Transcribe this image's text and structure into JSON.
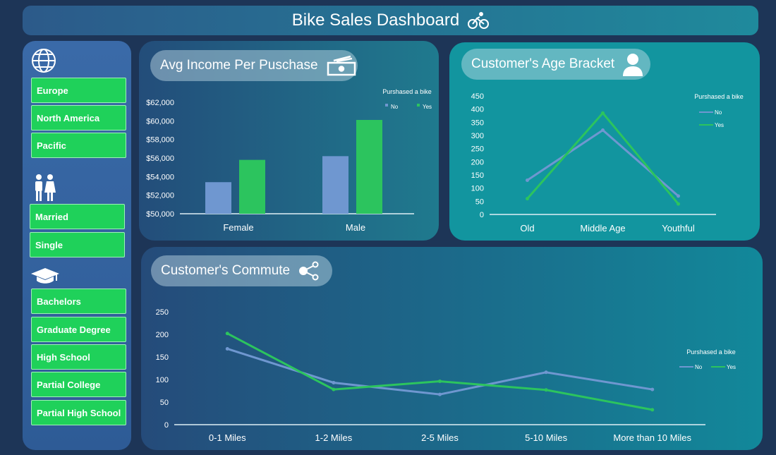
{
  "header": {
    "title": "Bike Sales Dashboard",
    "icon": "bicycle-icon"
  },
  "sidebar": {
    "regions": {
      "icon": "globe-icon",
      "items": [
        "Europe",
        "North America",
        "Pacific"
      ]
    },
    "marital": {
      "icon": "couple-icon",
      "items": [
        "Married",
        "Single"
      ]
    },
    "education": {
      "icon": "graduation-cap-icon",
      "items": [
        "Bachelors",
        "Graduate Degree",
        "High School",
        "Partial College",
        "Partial High School"
      ]
    },
    "button_color": "#1fd15a"
  },
  "colors": {
    "no": "#6f97d0",
    "yes": "#2cc45e"
  },
  "chart_data": [
    {
      "type": "bar",
      "title": "Avg Income Per Puschase",
      "icon": "money-icon",
      "legend_title": "Purshased a bike",
      "legend_placement": "top-right",
      "categories": [
        "Female",
        "Male"
      ],
      "series": [
        {
          "name": "No",
          "values": [
            53400,
            56200
          ]
        },
        {
          "name": "Yes",
          "values": [
            55800,
            60100
          ]
        }
      ],
      "ylim": [
        50000,
        62000
      ],
      "yticks": [
        "$50,000",
        "$52,000",
        "$54,000",
        "$56,000",
        "$58,000",
        "$60,000",
        "$62,000"
      ],
      "grid": false
    },
    {
      "type": "line",
      "title": "Customer's Age Bracket",
      "icon": "person-icon",
      "legend_title": "Purshased a bike",
      "legend_placement": "top-right",
      "categories": [
        "Old",
        "Middle Age",
        "Youthful"
      ],
      "series": [
        {
          "name": "No",
          "values": [
            130,
            320,
            70
          ]
        },
        {
          "name": "Yes",
          "values": [
            60,
            385,
            40
          ]
        }
      ],
      "ylim": [
        0,
        450
      ],
      "yticks": [
        "0",
        "50",
        "100",
        "150",
        "200",
        "250",
        "300",
        "350",
        "400",
        "450"
      ],
      "grid": false
    },
    {
      "type": "line",
      "title": "Customer's Commute",
      "icon": "share-icon",
      "legend_title": "Purshased a bike",
      "legend_placement": "right",
      "categories": [
        "0-1 Miles",
        "1-2 Miles",
        "2-5 Miles",
        "5-10 Miles",
        "More than 10 Miles"
      ],
      "series": [
        {
          "name": "No",
          "values": [
            168,
            93,
            67,
            116,
            78
          ]
        },
        {
          "name": "Yes",
          "values": [
            202,
            78,
            96,
            77,
            33
          ]
        }
      ],
      "ylim": [
        0,
        250
      ],
      "yticks": [
        "0",
        "50",
        "100",
        "150",
        "200",
        "250"
      ],
      "grid": false
    }
  ]
}
